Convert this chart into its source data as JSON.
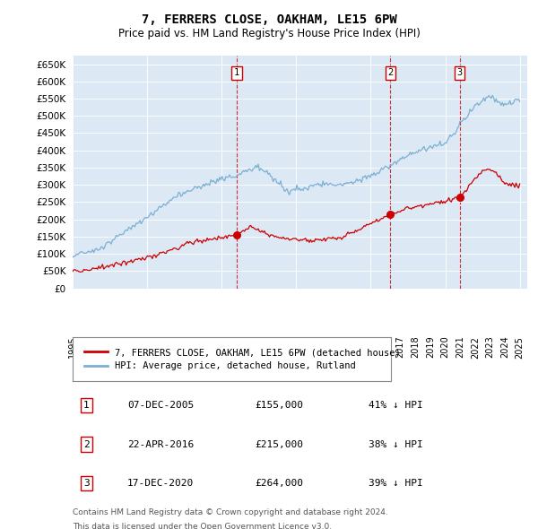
{
  "title": "7, FERRERS CLOSE, OAKHAM, LE15 6PW",
  "subtitle": "Price paid vs. HM Land Registry's House Price Index (HPI)",
  "background_color": "#dce9f5",
  "ylim": [
    0,
    675000
  ],
  "yticks": [
    0,
    50000,
    100000,
    150000,
    200000,
    250000,
    300000,
    350000,
    400000,
    450000,
    500000,
    550000,
    600000,
    650000
  ],
  "ytick_labels": [
    "£0",
    "£50K",
    "£100K",
    "£150K",
    "£200K",
    "£250K",
    "£300K",
    "£350K",
    "£400K",
    "£450K",
    "£500K",
    "£550K",
    "£600K",
    "£650K"
  ],
  "legend_house": "7, FERRERS CLOSE, OAKHAM, LE15 6PW (detached house)",
  "legend_hpi": "HPI: Average price, detached house, Rutland",
  "sale1_date": "07-DEC-2005",
  "sale1_price": "£155,000",
  "sale1_hpi": "41% ↓ HPI",
  "sale1_x": 2006.0,
  "sale1_y": 155000,
  "sale2_date": "22-APR-2016",
  "sale2_price": "£215,000",
  "sale2_hpi": "38% ↓ HPI",
  "sale2_x": 2016.31,
  "sale2_y": 215000,
  "sale3_date": "17-DEC-2020",
  "sale3_price": "£264,000",
  "sale3_hpi": "39% ↓ HPI",
  "sale3_x": 2020.96,
  "sale3_y": 264000,
  "footnote1": "Contains HM Land Registry data © Crown copyright and database right 2024.",
  "footnote2": "This data is licensed under the Open Government Licence v3.0.",
  "house_color": "#cc0000",
  "hpi_color": "#7bafd4",
  "dashed_color": "#cc0000",
  "box_color": "#cc0000",
  "xlim_left": 1995,
  "xlim_right": 2025.5
}
